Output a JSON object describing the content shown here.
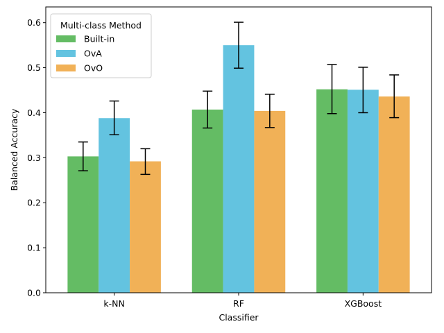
{
  "chart_data": {
    "type": "bar",
    "title": "",
    "xlabel": "Classifier",
    "ylabel": "Balanced Accuracy",
    "categories": [
      "k-NN",
      "RF",
      "XGBoost"
    ],
    "ylim": [
      0,
      0.635
    ],
    "yticks": [
      0.0,
      0.1,
      0.2,
      0.3,
      0.4,
      0.5,
      0.6
    ],
    "ytick_labels": [
      "0.0",
      "0.1",
      "0.2",
      "0.3",
      "0.4",
      "0.5",
      "0.6"
    ],
    "grid": false,
    "legend": {
      "title": "Multi-class Method",
      "placement": "top-left"
    },
    "series": [
      {
        "name": "Built-in",
        "color": "#5cb85c",
        "values": [
          0.303,
          0.407,
          0.452
        ],
        "error_low": [
          0.271,
          0.366,
          0.398
        ],
        "error_high": [
          0.335,
          0.448,
          0.507
        ]
      },
      {
        "name": "OvA",
        "color": "#5bc0de",
        "values": [
          0.388,
          0.55,
          0.451
        ],
        "error_low": [
          0.351,
          0.499,
          0.4
        ],
        "error_high": [
          0.426,
          0.601,
          0.501
        ]
      },
      {
        "name": "OvO",
        "color": "#f0ad4e",
        "values": [
          0.292,
          0.404,
          0.436
        ],
        "error_low": [
          0.263,
          0.367,
          0.389
        ],
        "error_high": [
          0.32,
          0.441,
          0.484
        ]
      }
    ]
  }
}
